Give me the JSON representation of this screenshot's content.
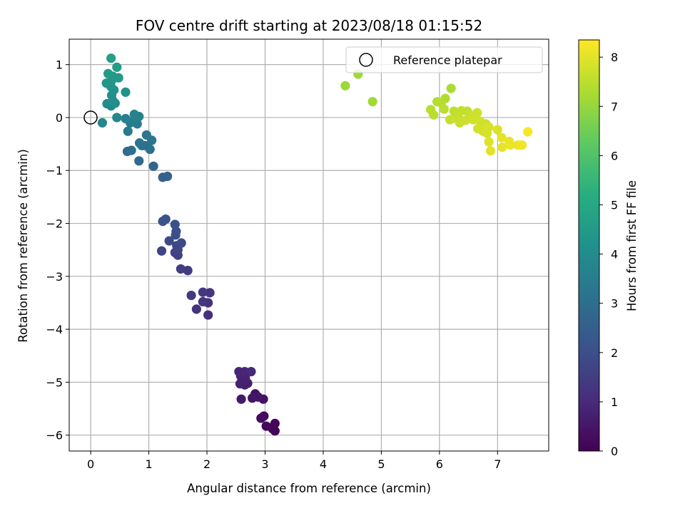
{
  "chart_data": {
    "type": "scatter",
    "title": "FOV centre drift starting at 2023/08/18 01:15:52",
    "xlabel": "Angular distance from reference (arcmin)",
    "ylabel": "Rotation from reference (arcmin)",
    "xlim": [
      -0.37,
      7.88
    ],
    "ylim": [
      -6.3,
      1.48
    ],
    "xticks": [
      0,
      1,
      2,
      3,
      4,
      5,
      6,
      7
    ],
    "yticks": [
      -6,
      -5,
      -4,
      -3,
      -2,
      -1,
      0,
      1
    ],
    "grid": true,
    "colormap": "viridis",
    "colorbar": {
      "label": "Hours from first FF file",
      "range": [
        0,
        8.35
      ],
      "ticks": [
        0,
        1,
        2,
        3,
        4,
        5,
        6,
        7,
        8
      ]
    },
    "legend": {
      "placement": "top-right",
      "entries": [
        "Reference platepar"
      ]
    },
    "reference_point": {
      "x": 0,
      "y": 0
    },
    "series": [
      {
        "points": [
          {
            "x": 3.17,
            "y": -5.92,
            "t": 0.05
          },
          {
            "x": 3.13,
            "y": -5.88,
            "t": 0.1
          },
          {
            "x": 3.17,
            "y": -5.78,
            "t": 0.12
          },
          {
            "x": 3.02,
            "y": -5.83,
            "t": 0.18
          },
          {
            "x": 2.98,
            "y": -5.64,
            "t": 0.22
          },
          {
            "x": 2.93,
            "y": -5.68,
            "t": 0.28
          },
          {
            "x": 2.97,
            "y": -5.32,
            "t": 0.35
          },
          {
            "x": 2.83,
            "y": -5.22,
            "t": 0.4
          },
          {
            "x": 2.88,
            "y": -5.28,
            "t": 0.45
          },
          {
            "x": 2.78,
            "y": -5.3,
            "t": 0.5
          },
          {
            "x": 2.59,
            "y": -5.32,
            "t": 0.55
          },
          {
            "x": 2.65,
            "y": -5.05,
            "t": 0.6
          },
          {
            "x": 2.6,
            "y": -4.98,
            "t": 0.65
          },
          {
            "x": 2.7,
            "y": -5.02,
            "t": 0.7
          },
          {
            "x": 2.57,
            "y": -5.03,
            "t": 0.75
          },
          {
            "x": 2.66,
            "y": -4.92,
            "t": 0.8
          },
          {
            "x": 2.58,
            "y": -4.88,
            "t": 0.83
          },
          {
            "x": 2.55,
            "y": -4.8,
            "t": 0.88
          },
          {
            "x": 2.65,
            "y": -4.8,
            "t": 0.92
          },
          {
            "x": 2.76,
            "y": -4.8,
            "t": 0.97
          },
          {
            "x": 2.02,
            "y": -3.73,
            "t": 1.1
          },
          {
            "x": 2.02,
            "y": -3.5,
            "t": 1.15
          },
          {
            "x": 1.82,
            "y": -3.62,
            "t": 1.2
          },
          {
            "x": 1.93,
            "y": -3.48,
            "t": 1.25
          },
          {
            "x": 2.05,
            "y": -3.31,
            "t": 1.3
          },
          {
            "x": 1.93,
            "y": -3.3,
            "t": 1.35
          },
          {
            "x": 1.73,
            "y": -3.36,
            "t": 1.4
          },
          {
            "x": 1.67,
            "y": -2.89,
            "t": 1.5
          },
          {
            "x": 1.55,
            "y": -2.86,
            "t": 1.55
          },
          {
            "x": 1.5,
            "y": -2.6,
            "t": 1.6
          },
          {
            "x": 1.45,
            "y": -2.55,
            "t": 1.65
          },
          {
            "x": 1.22,
            "y": -2.52,
            "t": 1.7
          },
          {
            "x": 1.5,
            "y": -2.5,
            "t": 1.75
          },
          {
            "x": 1.48,
            "y": -2.42,
            "t": 1.8
          },
          {
            "x": 1.56,
            "y": -2.37,
            "t": 1.85
          },
          {
            "x": 1.35,
            "y": -2.33,
            "t": 1.9
          },
          {
            "x": 1.46,
            "y": -2.22,
            "t": 1.95
          },
          {
            "x": 1.47,
            "y": -2.15,
            "t": 2.0
          },
          {
            "x": 1.45,
            "y": -2.02,
            "t": 2.05
          },
          {
            "x": 1.24,
            "y": -1.96,
            "t": 2.1
          },
          {
            "x": 1.29,
            "y": -1.92,
            "t": 2.15
          },
          {
            "x": 1.32,
            "y": -1.11,
            "t": 2.6
          },
          {
            "x": 1.24,
            "y": -1.13,
            "t": 2.65
          },
          {
            "x": 1.08,
            "y": -0.92,
            "t": 2.75
          },
          {
            "x": 0.83,
            "y": -0.82,
            "t": 2.85
          },
          {
            "x": 0.63,
            "y": -0.64,
            "t": 2.95
          },
          {
            "x": 0.7,
            "y": -0.62,
            "t": 3.0
          },
          {
            "x": 0.94,
            "y": -0.53,
            "t": 3.05
          },
          {
            "x": 1.02,
            "y": -0.6,
            "t": 3.1
          },
          {
            "x": 0.88,
            "y": -0.53,
            "t": 3.15
          },
          {
            "x": 0.84,
            "y": -0.48,
            "t": 3.2
          },
          {
            "x": 1.05,
            "y": -0.43,
            "t": 3.25
          },
          {
            "x": 0.96,
            "y": -0.33,
            "t": 3.3
          },
          {
            "x": 0.64,
            "y": -0.26,
            "t": 3.4
          },
          {
            "x": 0.8,
            "y": -0.12,
            "t": 3.45
          },
          {
            "x": 0.68,
            "y": -0.1,
            "t": 3.5
          },
          {
            "x": 0.75,
            "y": -0.05,
            "t": 3.55
          },
          {
            "x": 0.6,
            "y": -0.02,
            "t": 3.6
          },
          {
            "x": 0.83,
            "y": 0.02,
            "t": 3.65
          },
          {
            "x": 0.75,
            "y": 0.06,
            "t": 3.7
          },
          {
            "x": 0.2,
            "y": -0.1,
            "t": 3.8
          },
          {
            "x": 0.45,
            "y": 0.0,
            "t": 3.85
          },
          {
            "x": 0.35,
            "y": 0.22,
            "t": 3.95
          },
          {
            "x": 0.28,
            "y": 0.26,
            "t": 4.0
          },
          {
            "x": 0.42,
            "y": 0.27,
            "t": 4.05
          },
          {
            "x": 0.38,
            "y": 0.32,
            "t": 4.1
          },
          {
            "x": 0.36,
            "y": 0.42,
            "t": 4.15
          },
          {
            "x": 0.6,
            "y": 0.48,
            "t": 4.2
          },
          {
            "x": 0.4,
            "y": 0.52,
            "t": 4.25
          },
          {
            "x": 0.35,
            "y": 0.58,
            "t": 4.3
          },
          {
            "x": 0.27,
            "y": 0.65,
            "t": 4.35
          },
          {
            "x": 0.36,
            "y": 0.7,
            "t": 4.4
          },
          {
            "x": 0.48,
            "y": 0.75,
            "t": 4.45
          },
          {
            "x": 0.38,
            "y": 0.78,
            "t": 4.5
          },
          {
            "x": 0.3,
            "y": 0.83,
            "t": 4.55
          },
          {
            "x": 0.45,
            "y": 0.95,
            "t": 4.6
          },
          {
            "x": 0.35,
            "y": 1.12,
            "t": 4.7
          },
          {
            "x": 4.38,
            "y": 0.6,
            "t": 7.1
          },
          {
            "x": 4.6,
            "y": 0.82,
            "t": 7.12
          },
          {
            "x": 4.85,
            "y": 0.3,
            "t": 7.15
          },
          {
            "x": 6.2,
            "y": 0.55,
            "t": 7.3
          },
          {
            "x": 6.1,
            "y": 0.36,
            "t": 7.35
          },
          {
            "x": 5.96,
            "y": 0.3,
            "t": 7.4
          },
          {
            "x": 6.03,
            "y": 0.28,
            "t": 7.42
          },
          {
            "x": 5.85,
            "y": 0.15,
            "t": 7.45
          },
          {
            "x": 5.9,
            "y": 0.05,
            "t": 7.48
          },
          {
            "x": 6.08,
            "y": 0.16,
            "t": 7.5
          },
          {
            "x": 6.25,
            "y": 0.12,
            "t": 7.52
          },
          {
            "x": 6.38,
            "y": 0.13,
            "t": 7.55
          },
          {
            "x": 6.48,
            "y": 0.12,
            "t": 7.58
          },
          {
            "x": 6.32,
            "y": 0.05,
            "t": 7.6
          },
          {
            "x": 6.18,
            "y": -0.04,
            "t": 7.62
          },
          {
            "x": 6.28,
            "y": -0.02,
            "t": 7.64
          },
          {
            "x": 6.35,
            "y": -0.1,
            "t": 7.66
          },
          {
            "x": 6.45,
            "y": -0.05,
            "t": 7.68
          },
          {
            "x": 6.55,
            "y": 0.04,
            "t": 7.7
          },
          {
            "x": 6.65,
            "y": 0.09,
            "t": 7.72
          },
          {
            "x": 6.58,
            "y": -0.04,
            "t": 7.74
          },
          {
            "x": 6.7,
            "y": -0.07,
            "t": 7.76
          },
          {
            "x": 6.8,
            "y": -0.12,
            "t": 7.78
          },
          {
            "x": 6.66,
            "y": -0.21,
            "t": 7.8
          },
          {
            "x": 6.75,
            "y": -0.26,
            "t": 7.82
          },
          {
            "x": 6.82,
            "y": -0.3,
            "t": 7.85
          },
          {
            "x": 6.85,
            "y": -0.18,
            "t": 7.88
          },
          {
            "x": 7.0,
            "y": -0.23,
            "t": 7.9
          },
          {
            "x": 6.85,
            "y": -0.46,
            "t": 7.95
          },
          {
            "x": 6.88,
            "y": -0.63,
            "t": 8.0
          },
          {
            "x": 7.07,
            "y": -0.38,
            "t": 8.02
          },
          {
            "x": 7.08,
            "y": -0.56,
            "t": 8.05
          },
          {
            "x": 7.2,
            "y": -0.45,
            "t": 8.1
          },
          {
            "x": 7.22,
            "y": -0.52,
            "t": 8.12
          },
          {
            "x": 7.35,
            "y": -0.52,
            "t": 8.15
          },
          {
            "x": 7.42,
            "y": -0.52,
            "t": 8.18
          },
          {
            "x": 7.52,
            "y": -0.27,
            "t": 8.3
          }
        ]
      }
    ]
  }
}
